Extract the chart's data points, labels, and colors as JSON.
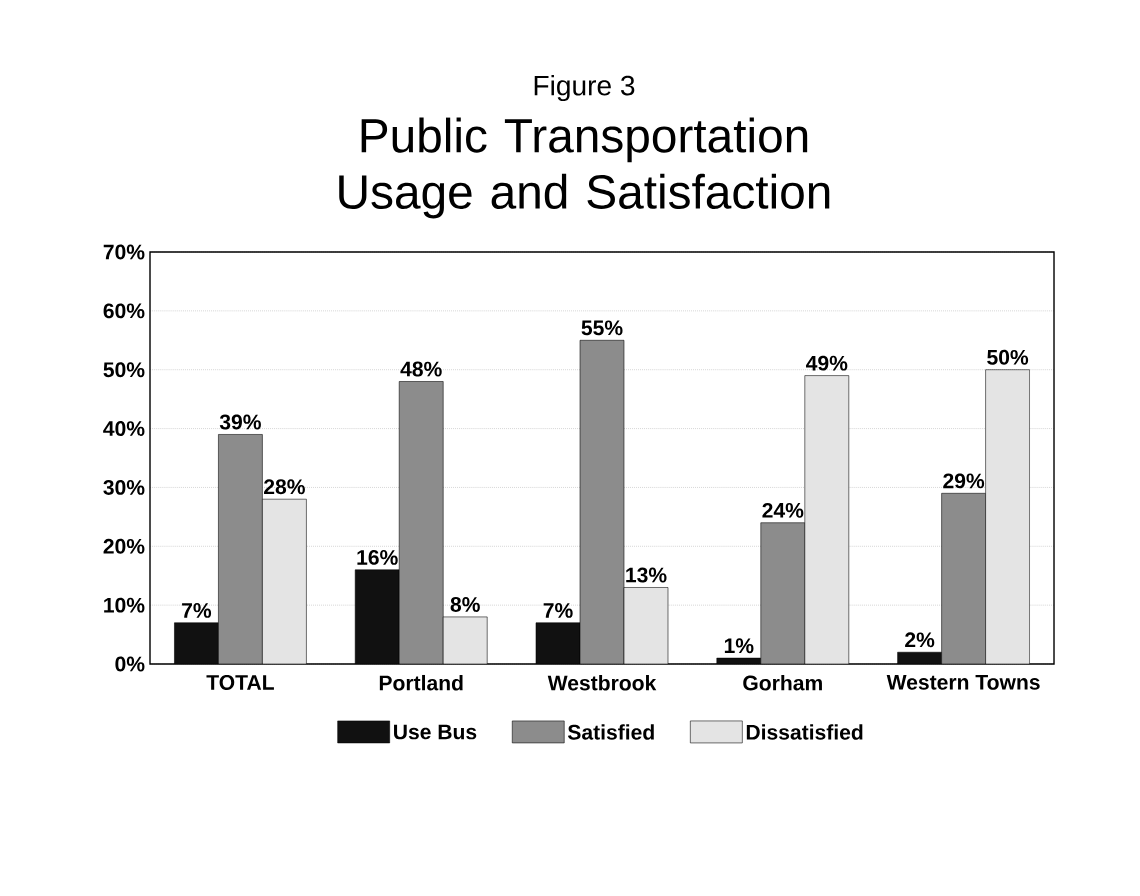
{
  "chart_data": {
    "type": "bar",
    "title": "Figure 3",
    "subtitle": "Public Transportation Usage and Satisfaction",
    "categories": [
      "TOTAL",
      "Portland",
      "Westbrook",
      "Gorham",
      "Western Towns"
    ],
    "series": [
      {
        "name": "Use Bus",
        "color": "#111111",
        "values": [
          7,
          16,
          7,
          1,
          2
        ],
        "value_labels": [
          "7%",
          "16%",
          "7%",
          "1%",
          "2%"
        ]
      },
      {
        "name": "Satisfied",
        "color": "#8c8c8c",
        "values": [
          39,
          48,
          55,
          24,
          29
        ],
        "value_labels": [
          "39%",
          "48%",
          "55%",
          "24%",
          "29%"
        ]
      },
      {
        "name": "Dissatisfied",
        "color": "#e4e4e4",
        "values": [
          28,
          8,
          13,
          49,
          50
        ],
        "value_labels": [
          "28%",
          "8%",
          "13%",
          "49%",
          "50%"
        ]
      }
    ],
    "ylim": [
      0,
      70
    ],
    "yticks": [
      {
        "value": 0,
        "label": "0%"
      },
      {
        "value": 10,
        "label": "10%"
      },
      {
        "value": 20,
        "label": "20%"
      },
      {
        "value": 30,
        "label": "30%"
      },
      {
        "value": 40,
        "label": "40%"
      },
      {
        "value": 50,
        "label": "50%"
      },
      {
        "value": 60,
        "label": "60%"
      },
      {
        "value": 70,
        "label": "70%"
      }
    ],
    "grid": "y",
    "legend": "bottom"
  }
}
